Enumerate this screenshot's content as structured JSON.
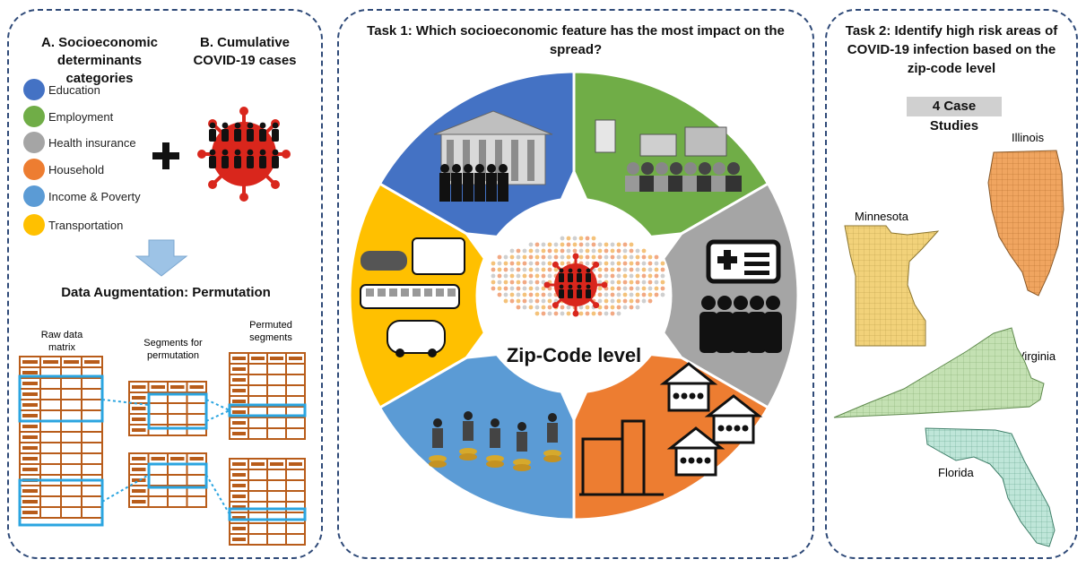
{
  "panel_a": {
    "title_a": "A. Socioeconomic determinants categories",
    "title_b": "B. Cumulative COVID-19 cases",
    "legend": [
      {
        "label": "Education",
        "color": "#4472c4"
      },
      {
        "label": "Employment",
        "color": "#70ad47"
      },
      {
        "label": "Health insurance",
        "color": "#a5a5a5"
      },
      {
        "label": "Household",
        "color": "#ed7d31"
      },
      {
        "label": "Income & Poverty",
        "color": "#5b9bd5"
      },
      {
        "label": "Transportation",
        "color": "#ffc000"
      }
    ],
    "augmentation_title": "Data Augmentation: Permutation",
    "raw_label": "Raw data matrix",
    "segments_label": "Segments for permutation",
    "permuted_label": "Permuted segments"
  },
  "task1": {
    "title": "Task 1: Which socioeconomic feature has the most impact on the spread?",
    "center_label": "Zip-Code level"
  },
  "task2": {
    "title": "Task 2: Identify high risk areas of COVID-19 infection based on the zip-code level",
    "case_studies": "4 Case Studies",
    "states": [
      "Illinois",
      "Minnesota",
      "Virginia",
      "Florida"
    ]
  },
  "colors": {
    "border": "#2f4a78",
    "matrix": "#b85c1a",
    "highlight": "#2ba5e0",
    "virus": "#d9261c"
  }
}
